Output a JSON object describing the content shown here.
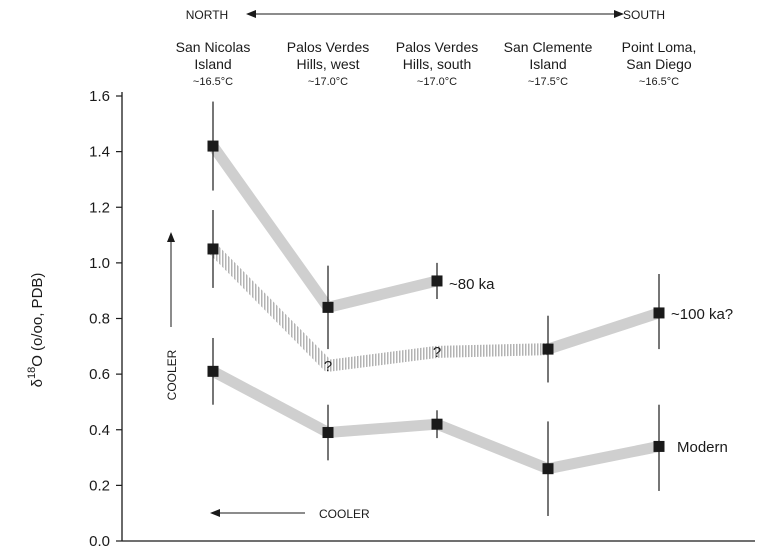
{
  "chart_data": {
    "type": "line",
    "ylabel_prefix": "δ",
    "ylabel_sup": "18",
    "ylabel_rest": "O (o/oo, PDB)",
    "ylim": [
      0.0,
      1.6
    ],
    "yticks": [
      "0.0",
      "0.2",
      "0.4",
      "0.6",
      "0.8",
      "1.0",
      "1.2",
      "1.4",
      "1.6"
    ],
    "grid": false,
    "direction": {
      "north": "NORTH",
      "south": "SOUTH"
    },
    "cooler_vertical": "COOLER",
    "cooler_horizontal": "COOLER",
    "sites": [
      {
        "name_line1": "San Nicolas",
        "name_line2": "Island",
        "temp": "~16.5°C"
      },
      {
        "name_line1": "Palos Verdes",
        "name_line2": "Hills, west",
        "temp": "~17.0°C"
      },
      {
        "name_line1": "Palos Verdes",
        "name_line2": "Hills, south",
        "temp": "~17.0°C"
      },
      {
        "name_line1": "San Clemente",
        "name_line2": "Island",
        "temp": "~17.5°C"
      },
      {
        "name_line1": "Point Loma,",
        "name_line2": "San Diego",
        "temp": "~16.5°C"
      }
    ],
    "series": [
      {
        "name": "~80 ka",
        "style": "solid",
        "points": [
          {
            "site": 0,
            "y": 1.42,
            "err_low": 1.26,
            "err_high": 1.58
          },
          {
            "site": 1,
            "y": 0.84,
            "err_low": 0.69,
            "err_high": 0.99
          },
          {
            "site": 2,
            "y": 0.935,
            "err_low": 0.87,
            "err_high": 1.0
          }
        ]
      },
      {
        "name": "",
        "style": "hatched",
        "points": [
          {
            "site": 0,
            "y": 1.05,
            "err_low": 0.91,
            "err_high": 1.19
          },
          {
            "site": 1,
            "y": 0.63,
            "marker": "?"
          },
          {
            "site": 2,
            "y": 0.68,
            "marker": "?"
          },
          {
            "site": 3,
            "y": 0.69
          }
        ]
      },
      {
        "name": "~100 ka?",
        "style": "solid",
        "points": [
          {
            "site": 3,
            "y": 0.69,
            "err_low": 0.57,
            "err_high": 0.81
          },
          {
            "site": 4,
            "y": 0.82,
            "err_low": 0.69,
            "err_high": 0.96
          }
        ]
      },
      {
        "name": "Modern",
        "style": "solid",
        "points": [
          {
            "site": 0,
            "y": 0.61,
            "err_low": 0.49,
            "err_high": 0.73
          },
          {
            "site": 1,
            "y": 0.39,
            "err_low": 0.29,
            "err_high": 0.49
          },
          {
            "site": 2,
            "y": 0.42,
            "err_low": 0.37,
            "err_high": 0.47
          },
          {
            "site": 3,
            "y": 0.26,
            "err_low": 0.09,
            "err_high": 0.43
          },
          {
            "site": 4,
            "y": 0.34,
            "err_low": 0.18,
            "err_high": 0.49
          }
        ]
      }
    ],
    "colors": {
      "line": "#cfcfcf",
      "marker": "#1a1a1a",
      "axis": "#1a1a1a"
    }
  }
}
